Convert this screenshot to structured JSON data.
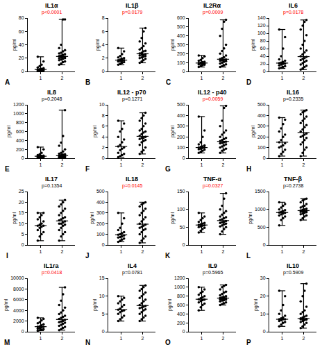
{
  "chart_data": [
    {
      "type": "scatter",
      "panel": "A",
      "title": "IL1α",
      "annotations": [
        {
          "text": "p<0.0001",
          "color": "#ff0000"
        }
      ],
      "y_label": "pg/ml",
      "categories": [
        "1",
        "2"
      ],
      "color": "#000000",
      "marker": "circle",
      "grid": false,
      "ylim": [
        0,
        80
      ],
      "yticks": [
        0,
        20,
        40,
        60,
        80
      ],
      "values": [
        [
          0.5,
          1,
          1,
          1.5,
          2,
          2,
          2.5,
          3,
          3,
          3.5,
          4,
          5,
          6,
          8,
          10,
          15,
          22
        ],
        [
          10,
          12,
          14,
          15,
          17,
          18,
          19,
          20,
          20,
          21,
          22,
          22,
          23,
          24,
          25,
          26,
          27,
          28,
          30,
          32,
          35,
          40,
          78,
          78
        ]
      ]
    },
    {
      "type": "scatter",
      "panel": "B",
      "title": "IL1β",
      "annotations": [
        {
          "text": "p=0.0179",
          "color": "#ff0000"
        }
      ],
      "y_label": "pg/ml",
      "categories": [
        "1",
        "2"
      ],
      "color": "#000000",
      "marker": "circle",
      "grid": false,
      "ylim": [
        0,
        8
      ],
      "yticks": [
        0,
        2,
        4,
        6,
        8
      ],
      "values": [
        [
          1.0,
          1.2,
          1.3,
          1.4,
          1.5,
          1.6,
          1.6,
          1.7,
          1.7,
          1.8,
          1.9,
          2.0,
          2.1,
          2.3,
          2.6,
          3.0,
          3.5
        ],
        [
          1.3,
          1.5,
          1.7,
          1.9,
          2.0,
          2.1,
          2.2,
          2.3,
          2.4,
          2.5,
          2.5,
          2.6,
          2.7,
          2.8,
          3.0,
          3.1,
          3.3,
          3.5,
          3.8,
          4.2,
          4.5,
          5.0,
          6.0,
          6.5
        ]
      ]
    },
    {
      "type": "scatter",
      "panel": "C",
      "title": "IL2Rα",
      "annotations": [
        {
          "text": "p=0.0009",
          "color": "#ff0000"
        }
      ],
      "y_label": "pg/ml",
      "categories": [
        "1",
        "2"
      ],
      "color": "#000000",
      "marker": "circle",
      "grid": false,
      "ylim": [
        0,
        600
      ],
      "yticks": [
        0,
        100,
        200,
        300,
        400,
        500,
        600
      ],
      "values": [
        [
          50,
          60,
          70,
          75,
          80,
          85,
          88,
          90,
          95,
          100,
          105,
          110,
          120,
          130,
          150,
          170,
          180
        ],
        [
          50,
          60,
          70,
          80,
          90,
          100,
          110,
          115,
          120,
          125,
          130,
          135,
          140,
          150,
          160,
          180,
          200,
          230,
          260,
          300,
          400,
          480,
          560,
          580
        ]
      ]
    },
    {
      "type": "scatter",
      "panel": "D",
      "title": "IL6",
      "annotations": [
        {
          "text": "p=0.0178",
          "color": "#ff0000"
        }
      ],
      "y_label": "pg/ml",
      "categories": [
        "1",
        "2"
      ],
      "color": "#000000",
      "marker": "circle",
      "grid": false,
      "ylim": [
        0,
        140
      ],
      "yticks": [
        0,
        20,
        40,
        60,
        80,
        100,
        120,
        140
      ],
      "values": [
        [
          8,
          10,
          12,
          14,
          16,
          18,
          20,
          21,
          22,
          23,
          25,
          28,
          32,
          40,
          60,
          90,
          110
        ],
        [
          5,
          8,
          12,
          15,
          18,
          22,
          25,
          28,
          30,
          33,
          35,
          38,
          40,
          45,
          50,
          55,
          60,
          70,
          80,
          95,
          110,
          120,
          130,
          135
        ]
      ]
    },
    {
      "type": "scatter",
      "panel": "E",
      "title": "IL8",
      "annotations": [
        {
          "text": "p=0.2048",
          "color": "#000000"
        }
      ],
      "y_label": "pg/ml",
      "categories": [
        "1",
        "2"
      ],
      "color": "#000000",
      "marker": "circle",
      "grid": false,
      "ylim": [
        0,
        1200
      ],
      "yticks": [
        0,
        200,
        400,
        600,
        800,
        1000,
        1200
      ],
      "values": [
        [
          10,
          15,
          20,
          25,
          30,
          35,
          38,
          40,
          45,
          50,
          55,
          60,
          70,
          90,
          120,
          200,
          250
        ],
        [
          5,
          10,
          15,
          20,
          25,
          30,
          35,
          40,
          45,
          48,
          50,
          55,
          60,
          70,
          80,
          90,
          100,
          120,
          150,
          200,
          280,
          350,
          500,
          1080
        ]
      ]
    },
    {
      "type": "scatter",
      "panel": "F",
      "title": "IL12 - p70",
      "annotations": [
        {
          "text": "p=0.1271",
          "color": "#000000"
        }
      ],
      "y_label": "pg/ml",
      "categories": [
        "1",
        "2"
      ],
      "color": "#000000",
      "marker": "circle",
      "grid": false,
      "ylim": [
        0,
        10
      ],
      "yticks": [
        0,
        2,
        4,
        6,
        8,
        10
      ],
      "values": [
        [
          0.2,
          0.4,
          0.6,
          0.8,
          1.0,
          1.5,
          1.8,
          2.0,
          2.2,
          2.5,
          3.0,
          3.5,
          4.0,
          5.0,
          5.5,
          6.5,
          7.0
        ],
        [
          0.8,
          1.2,
          1.5,
          2.0,
          2.5,
          3.0,
          3.2,
          3.4,
          3.6,
          3.8,
          3.8,
          4.0,
          4.2,
          4.5,
          4.8,
          5.0,
          5.2,
          5.5,
          6.0,
          6.5,
          7.0,
          7.5,
          8.0,
          8.5
        ]
      ]
    },
    {
      "type": "scatter",
      "panel": "G",
      "title": "IL12 - p40",
      "annotations": [
        {
          "text": "p=0.0059",
          "color": "#ff0000"
        }
      ],
      "y_label": "pg/ml",
      "categories": [
        "1",
        "2"
      ],
      "color": "#000000",
      "marker": "circle",
      "grid": false,
      "ylim": [
        0,
        500
      ],
      "yticks": [
        0,
        100,
        200,
        300,
        400,
        500
      ],
      "values": [
        [
          50,
          60,
          70,
          80,
          85,
          90,
          95,
          100,
          100,
          105,
          110,
          120,
          130,
          150,
          200,
          260,
          390
        ],
        [
          50,
          70,
          80,
          90,
          100,
          110,
          120,
          130,
          140,
          145,
          150,
          155,
          160,
          170,
          180,
          190,
          200,
          220,
          240,
          260,
          300,
          350,
          470,
          490
        ]
      ]
    },
    {
      "type": "scatter",
      "panel": "H",
      "title": "IL16",
      "annotations": [
        {
          "text": "p=0.2335",
          "color": "#000000"
        }
      ],
      "y_label": "pg/ml",
      "categories": [
        "1",
        "2"
      ],
      "color": "#000000",
      "marker": "circle",
      "grid": false,
      "ylim": [
        0,
        500
      ],
      "yticks": [
        0,
        100,
        200,
        300,
        400,
        500
      ],
      "values": [
        [
          20,
          40,
          60,
          80,
          100,
          110,
          120,
          140,
          150,
          170,
          200,
          220,
          250,
          280,
          320,
          360,
          380
        ],
        [
          20,
          50,
          80,
          100,
          130,
          150,
          170,
          190,
          200,
          210,
          220,
          230,
          250,
          270,
          290,
          310,
          330,
          350,
          370,
          390,
          410,
          430,
          440,
          450
        ]
      ]
    },
    {
      "type": "scatter",
      "panel": "I",
      "title": "IL17",
      "annotations": [
        {
          "text": "p=0.1354",
          "color": "#000000"
        }
      ],
      "y_label": "pg/ml",
      "categories": [
        "1",
        "2"
      ],
      "color": "#000000",
      "marker": "circle",
      "grid": false,
      "ylim": [
        0,
        25
      ],
      "yticks": [
        0,
        5,
        10,
        15,
        20,
        25
      ],
      "values": [
        [
          2,
          4,
          5,
          6,
          7,
          8,
          8.5,
          9,
          9,
          9.5,
          10,
          11,
          12,
          13,
          14,
          15,
          15
        ],
        [
          2,
          4,
          5,
          6,
          7,
          8,
          9,
          9.5,
          10,
          10,
          10.5,
          11,
          11.5,
          12,
          12.5,
          13,
          14,
          15,
          16,
          17,
          18,
          19,
          20,
          21
        ]
      ]
    },
    {
      "type": "scatter",
      "panel": "J",
      "title": "IL18",
      "annotations": [
        {
          "text": "p=0.0145",
          "color": "#ff0000"
        }
      ],
      "y_label": "pg/ml",
      "categories": [
        "1",
        "2"
      ],
      "color": "#000000",
      "marker": "circle",
      "grid": false,
      "ylim": [
        0,
        500
      ],
      "yticks": [
        0,
        100,
        200,
        300,
        400,
        500
      ],
      "values": [
        [
          30,
          40,
          50,
          60,
          70,
          75,
          80,
          90,
          95,
          100,
          110,
          120,
          140,
          160,
          200,
          250,
          300
        ],
        [
          20,
          40,
          60,
          80,
          100,
          120,
          140,
          150,
          160,
          170,
          180,
          190,
          200,
          220,
          240,
          260,
          280,
          300,
          320,
          340,
          360,
          380,
          390,
          400
        ]
      ]
    },
    {
      "type": "scatter",
      "panel": "K",
      "title": "TNF-α",
      "annotations": [
        {
          "text": "p=0.0327",
          "color": "#ff0000"
        }
      ],
      "y_label": "pg/ml",
      "categories": [
        "1",
        "2"
      ],
      "color": "#000000",
      "marker": "circle",
      "grid": false,
      "ylim": [
        0,
        150
      ],
      "yticks": [
        0,
        50,
        100,
        150
      ],
      "values": [
        [
          35,
          40,
          45,
          48,
          50,
          52,
          54,
          55,
          56,
          58,
          60,
          62,
          65,
          70,
          75,
          80,
          90
        ],
        [
          30,
          38,
          45,
          50,
          52,
          55,
          58,
          60,
          62,
          64,
          65,
          67,
          70,
          72,
          75,
          78,
          80,
          85,
          90,
          95,
          100,
          110,
          130,
          145
        ]
      ]
    },
    {
      "type": "scatter",
      "panel": "L",
      "title": "TNF-β",
      "annotations": [
        {
          "text": "p=0.2738",
          "color": "#000000"
        }
      ],
      "y_label": "pg/ml",
      "categories": [
        "1",
        "2"
      ],
      "color": "#000000",
      "marker": "circle",
      "grid": false,
      "ylim": [
        0,
        1500
      ],
      "yticks": [
        0,
        500,
        1000,
        1500
      ],
      "values": [
        [
          550,
          700,
          750,
          800,
          830,
          860,
          880,
          900,
          910,
          930,
          950,
          980,
          1000,
          1050,
          1100,
          1150,
          1200
        ],
        [
          700,
          750,
          800,
          830,
          860,
          880,
          900,
          920,
          930,
          940,
          950,
          960,
          970,
          990,
          1000,
          1020,
          1050,
          1080,
          1100,
          1150,
          1200,
          1250,
          1280,
          1300
        ]
      ]
    },
    {
      "type": "scatter",
      "panel": "M",
      "title": "IL1ra",
      "annotations": [
        {
          "text": "p=0.0418",
          "color": "#ff0000"
        }
      ],
      "y_label": "pg/ml",
      "categories": [
        "1",
        "2"
      ],
      "color": "#000000",
      "marker": "circle",
      "grid": false,
      "ylim": [
        0,
        10000
      ],
      "yticks": [
        0,
        2000,
        4000,
        6000,
        8000,
        10000
      ],
      "values": [
        [
          200,
          300,
          400,
          500,
          600,
          700,
          800,
          900,
          950,
          1000,
          1200,
          1400,
          1600,
          1800,
          2100,
          2400,
          2600
        ],
        [
          300,
          500,
          700,
          900,
          1100,
          1300,
          1500,
          1700,
          1800,
          1900,
          2000,
          2200,
          2400,
          2600,
          2800,
          3000,
          3300,
          3600,
          4000,
          4500,
          5000,
          5800,
          7000,
          8300
        ]
      ]
    },
    {
      "type": "scatter",
      "panel": "N",
      "title": "IL4",
      "annotations": [
        {
          "text": "p=0.0781",
          "color": "#000000"
        }
      ],
      "y_label": "pg/ml",
      "categories": [
        "1",
        "2"
      ],
      "color": "#000000",
      "marker": "circle",
      "grid": false,
      "ylim": [
        0,
        15
      ],
      "yticks": [
        0,
        5,
        10,
        15
      ],
      "values": [
        [
          3,
          3.5,
          4,
          4.5,
          5,
          5.5,
          5.8,
          6,
          6.2,
          6.5,
          7,
          7.5,
          8,
          8.5,
          9,
          9.5,
          10
        ],
        [
          3,
          3.5,
          4,
          4.5,
          5,
          5.5,
          6,
          6.3,
          6.6,
          6.8,
          7,
          7.2,
          7.5,
          8,
          8.5,
          9,
          9.5,
          10,
          10.5,
          11,
          11.5,
          12,
          12.5,
          13
        ]
      ]
    },
    {
      "type": "scatter",
      "panel": "O",
      "title": "IL9",
      "annotations": [
        {
          "text": "p=0.5965",
          "color": "#000000"
        }
      ],
      "y_label": "pg/ml",
      "categories": [
        "1",
        "2"
      ],
      "color": "#000000",
      "marker": "circle",
      "grid": false,
      "ylim": [
        0,
        1200
      ],
      "yticks": [
        0,
        200,
        400,
        600,
        800,
        1000,
        1200
      ],
      "values": [
        [
          480,
          550,
          600,
          630,
          660,
          690,
          710,
          720,
          730,
          750,
          770,
          800,
          830,
          870,
          900,
          950,
          1000
        ],
        [
          600,
          620,
          640,
          660,
          680,
          700,
          710,
          720,
          730,
          740,
          740,
          750,
          760,
          770,
          780,
          800,
          820,
          850,
          880,
          900,
          950,
          1000,
          1030,
          1050
        ]
      ]
    },
    {
      "type": "scatter",
      "panel": "P",
      "title": "IL10",
      "annotations": [
        {
          "text": "p=0.5909",
          "color": "#000000"
        }
      ],
      "y_label": "pg/ml",
      "categories": [
        "1",
        "2"
      ],
      "color": "#000000",
      "marker": "circle",
      "grid": false,
      "ylim": [
        0,
        30
      ],
      "yticks": [
        0,
        10,
        20,
        30
      ],
      "values": [
        [
          3,
          4,
          5,
          5.5,
          6,
          6.5,
          7,
          7,
          7,
          7.5,
          8,
          9,
          10,
          12,
          15,
          20,
          23
        ],
        [
          2,
          3,
          4,
          5,
          5.5,
          6,
          6.5,
          6.8,
          7,
          7,
          7,
          7.2,
          7.5,
          8,
          8.5,
          9,
          10,
          11,
          12,
          14,
          17,
          20,
          23,
          27
        ]
      ]
    }
  ]
}
